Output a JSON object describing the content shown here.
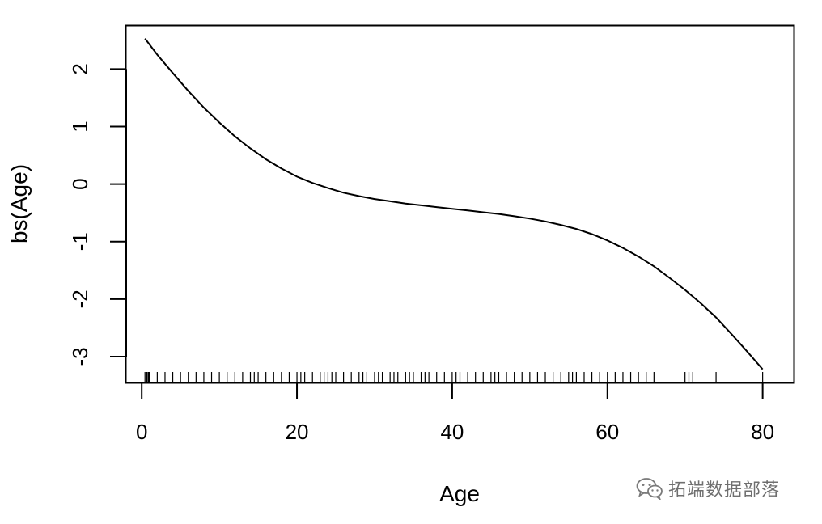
{
  "chart_data": {
    "type": "line",
    "title": "",
    "xlabel": "Age",
    "ylabel": "bs(Age)",
    "xlim": [
      -2,
      84
    ],
    "ylim": [
      -3.45,
      2.75
    ],
    "x_ticks": [
      0,
      20,
      40,
      60,
      80
    ],
    "y_ticks": [
      -3,
      -2,
      -1,
      0,
      1,
      2
    ],
    "grid": false,
    "legend": "none",
    "series": [
      {
        "x": [
          0.42,
          2,
          4,
          6,
          8,
          10,
          12,
          14,
          16,
          18,
          20,
          22,
          24,
          26,
          28,
          30,
          32,
          34,
          36,
          38,
          40,
          42,
          44,
          46,
          48,
          50,
          52,
          54,
          56,
          58,
          60,
          62,
          64,
          66,
          68,
          70,
          72,
          74,
          76,
          78,
          80
        ],
        "y": [
          2.53,
          2.25,
          1.93,
          1.62,
          1.33,
          1.07,
          0.83,
          0.62,
          0.43,
          0.27,
          0.13,
          0.02,
          -0.07,
          -0.15,
          -0.21,
          -0.26,
          -0.3,
          -0.34,
          -0.37,
          -0.4,
          -0.43,
          -0.46,
          -0.49,
          -0.52,
          -0.56,
          -0.6,
          -0.65,
          -0.71,
          -0.78,
          -0.87,
          -0.98,
          -1.11,
          -1.26,
          -1.43,
          -1.63,
          -1.84,
          -2.07,
          -2.32,
          -2.61,
          -2.91,
          -3.22
        ]
      }
    ],
    "rug": {
      "side": "bottom",
      "x": [
        0.42,
        0.67,
        0.83,
        0.92,
        1,
        2,
        3,
        4,
        5,
        6,
        7,
        8,
        9,
        10,
        11,
        12,
        13,
        14,
        14.5,
        15,
        16,
        17,
        18,
        19,
        20,
        20.5,
        21,
        22,
        23,
        23.5,
        24,
        24.5,
        25,
        26,
        27,
        28,
        28.5,
        29,
        30,
        30.5,
        31,
        32,
        32.5,
        33,
        34,
        34.5,
        35,
        36,
        36.5,
        37,
        38,
        39,
        40,
        40.5,
        41,
        42,
        43,
        44,
        45,
        45.5,
        46,
        47,
        48,
        49,
        50,
        51,
        52,
        53,
        54,
        55,
        55.5,
        56,
        57,
        58,
        59,
        60,
        61,
        62,
        63,
        64,
        65,
        66,
        70,
        70.5,
        71,
        74,
        80
      ]
    }
  },
  "watermark": {
    "icon": "wechat-icon",
    "text": "拓端数据部落",
    "color": "#6f6f6f"
  }
}
